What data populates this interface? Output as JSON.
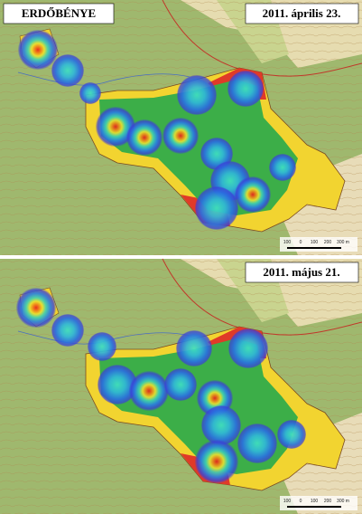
{
  "panels": [
    {
      "place": "ERDŐBÉNYE",
      "date": "2011. április 23.",
      "scale_labels": [
        "100",
        "0",
        "100",
        "200",
        "300 m"
      ]
    },
    {
      "date": "2011. május 21.",
      "scale_labels": [
        "100",
        "0",
        "100",
        "200",
        "300 m"
      ]
    }
  ]
}
